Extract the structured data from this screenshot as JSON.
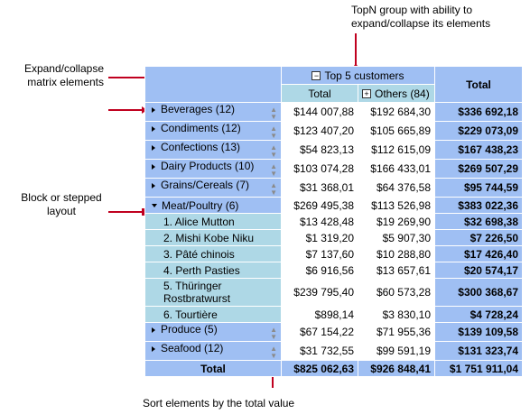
{
  "annotations": {
    "topn": "TopN group with ability to expand/collapse its elements",
    "expand": "Expand/collapse matrix elements",
    "block": "Block or stepped layout",
    "sort": "Sort elements by the total value"
  },
  "pivot": {
    "group_header": "Top 5 customers",
    "total_header": "Total",
    "sub_total": "Total",
    "sub_others": "Others (84)",
    "footer_label": "Total",
    "rows": [
      {
        "label": "Beverages (12)",
        "v1": "$144 007,88",
        "v2": "$192 684,30",
        "t": "$336 692,18",
        "kind": "group"
      },
      {
        "label": "Condiments (12)",
        "v1": "$123 407,20",
        "v2": "$105 665,89",
        "t": "$229 073,09",
        "kind": "group"
      },
      {
        "label": "Confections (13)",
        "v1": "$54 823,13",
        "v2": "$112 615,09",
        "t": "$167 438,23",
        "kind": "group"
      },
      {
        "label": "Dairy Products (10)",
        "v1": "$103 074,28",
        "v2": "$166 433,01",
        "t": "$269 507,29",
        "kind": "group"
      },
      {
        "label": "Grains/Cereals (7)",
        "v1": "$31 368,01",
        "v2": "$64 376,58",
        "t": "$95 744,59",
        "kind": "group"
      },
      {
        "label": "Meat/Poultry (6)",
        "v1": "$269 495,38",
        "v2": "$113 526,98",
        "t": "$383 022,36",
        "kind": "expanded"
      },
      {
        "label": "1. Alice Mutton",
        "v1": "$13 428,48",
        "v2": "$19 269,90",
        "t": "$32 698,38",
        "kind": "item"
      },
      {
        "label": "2. Mishi Kobe Niku",
        "v1": "$1 319,20",
        "v2": "$5 907,30",
        "t": "$7 226,50",
        "kind": "item"
      },
      {
        "label": "3. Pâté chinois",
        "v1": "$7 137,60",
        "v2": "$10 288,80",
        "t": "$17 426,40",
        "kind": "item"
      },
      {
        "label": "4. Perth Pasties",
        "v1": "$6 916,56",
        "v2": "$13 657,61",
        "t": "$20 574,17",
        "kind": "item"
      },
      {
        "label": "5. Thüringer Rostbratwurst",
        "v1": "$239 795,40",
        "v2": "$60 573,28",
        "t": "$300 368,67",
        "kind": "item2"
      },
      {
        "label": "6. Tourtière",
        "v1": "$898,14",
        "v2": "$3 830,10",
        "t": "$4 728,24",
        "kind": "item"
      },
      {
        "label": "Produce (5)",
        "v1": "$67 154,22",
        "v2": "$71 955,36",
        "t": "$139 109,58",
        "kind": "group"
      },
      {
        "label": "Seafood (12)",
        "v1": "$31 732,55",
        "v2": "$99 591,19",
        "t": "$131 323,74",
        "kind": "group"
      }
    ],
    "footer": {
      "v1": "$825 062,63",
      "v2": "$926 848,41",
      "t": "$1 751 911,04"
    }
  },
  "colors": {
    "header": "#9fbff3",
    "subrow": "#aed8e6",
    "callout": "#c0001f"
  }
}
